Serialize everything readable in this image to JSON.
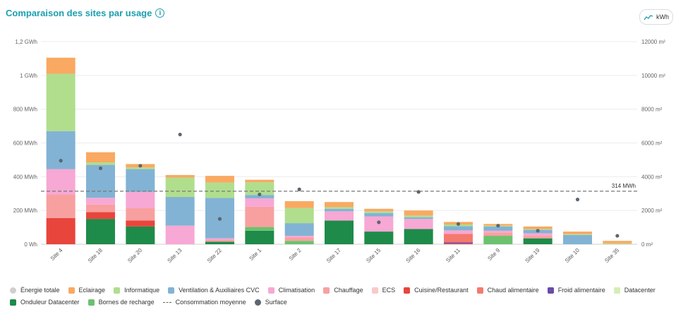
{
  "header": {
    "title": "Comparaison des sites par usage",
    "unit_button_label": "kWh"
  },
  "chart_data": {
    "type": "bar",
    "stacked": true,
    "title": "Comparaison des sites par usage",
    "left_axis": {
      "unit": "MWh",
      "lim": [
        0,
        1200
      ],
      "ticks": [
        0,
        200,
        400,
        600,
        800,
        1000,
        1200
      ],
      "tick_labels": [
        "0 Wh",
        "200 MWh",
        "400 MWh",
        "600 MWh",
        "800 MWh",
        "1 GWh",
        "1,2 GWh"
      ]
    },
    "right_axis": {
      "unit": "m²",
      "lim": [
        0,
        12000
      ],
      "ticks": [
        0,
        2000,
        4000,
        6000,
        8000,
        10000,
        12000
      ],
      "tick_labels": [
        "0 m²",
        "2000 m²",
        "4000 m²",
        "6000 m²",
        "8000 m²",
        "10000 m²",
        "12000 m²"
      ]
    },
    "grid": true,
    "legend_position": "bottom",
    "categories": [
      "Site 4",
      "Site 18",
      "Site 20",
      "Site 13",
      "Site 22",
      "Site 1",
      "Site 2",
      "Site 17",
      "Site 15",
      "Site 16",
      "Site 11",
      "Site 9",
      "Site 19",
      "Site 10",
      "Site 35"
    ],
    "series": [
      {
        "name": "Onduleur Datacenter",
        "color": "#1e8b4a",
        "values": [
          0,
          150,
          105,
          0,
          15,
          80,
          0,
          140,
          75,
          90,
          0,
          0,
          35,
          0,
          0
        ]
      },
      {
        "name": "Bornes de recharge",
        "color": "#6cc16e",
        "values": [
          0,
          0,
          0,
          0,
          0,
          22,
          20,
          0,
          0,
          0,
          0,
          50,
          0,
          0,
          0
        ]
      },
      {
        "name": "Cuisine/Restaurant",
        "color": "#e8453c",
        "values": [
          155,
          40,
          35,
          0,
          0,
          0,
          0,
          0,
          0,
          0,
          5,
          0,
          0,
          0,
          0
        ]
      },
      {
        "name": "Froid alimentaire",
        "color": "#6a4ba8",
        "values": [
          0,
          0,
          0,
          0,
          0,
          0,
          0,
          0,
          0,
          0,
          7,
          0,
          0,
          0,
          0
        ]
      },
      {
        "name": "Chaud alimentaire",
        "color": "#f47a6e",
        "values": [
          0,
          0,
          0,
          0,
          0,
          0,
          0,
          0,
          0,
          0,
          50,
          0,
          0,
          0,
          0
        ]
      },
      {
        "name": "Chauffage",
        "color": "#f8a0a0",
        "values": [
          140,
          45,
          75,
          0,
          10,
          120,
          20,
          0,
          0,
          0,
          0,
          20,
          15,
          0,
          0
        ]
      },
      {
        "name": "ECS",
        "color": "#f9c9c9",
        "values": [
          0,
          0,
          0,
          0,
          0,
          0,
          0,
          0,
          0,
          0,
          0,
          0,
          0,
          0,
          0
        ]
      },
      {
        "name": "Climatisation",
        "color": "#f7a8d4",
        "values": [
          150,
          40,
          95,
          110,
          10,
          50,
          10,
          55,
          90,
          60,
          20,
          10,
          15,
          0,
          0
        ]
      },
      {
        "name": "Ventilation & Auxiliaires CVC",
        "color": "#82b3d4",
        "values": [
          225,
          195,
          135,
          170,
          240,
          20,
          75,
          15,
          20,
          10,
          25,
          25,
          20,
          55,
          0
        ]
      },
      {
        "name": "Informatique",
        "color": "#b0de8d",
        "values": [
          340,
          15,
          10,
          115,
          90,
          75,
          90,
          10,
          10,
          10,
          10,
          5,
          5,
          5,
          5
        ]
      },
      {
        "name": "Datacenter",
        "color": "#d4eeb6",
        "values": [
          0,
          0,
          0,
          0,
          0,
          0,
          0,
          0,
          0,
          0,
          0,
          0,
          0,
          0,
          0
        ]
      },
      {
        "name": "Éclairage",
        "color": "#f9a962",
        "values": [
          95,
          60,
          20,
          15,
          40,
          15,
          40,
          30,
          15,
          30,
          15,
          10,
          15,
          15,
          15
        ]
      }
    ],
    "surface_m2": [
      4950,
      4500,
      4650,
      6500,
      1500,
      2950,
      3250,
      null,
      1300,
      3100,
      1200,
      1100,
      800,
      2650,
      500
    ],
    "average_consumption_mwh": 314,
    "average_label": "314 MWh"
  },
  "legend": {
    "row1": [
      {
        "label": "Énergie totale",
        "color": "#cfcfcf",
        "shape": "dot"
      },
      {
        "label": "Eclairage",
        "color": "#f9a962",
        "shape": "square"
      },
      {
        "label": "Informatique",
        "color": "#b0de8d",
        "shape": "square"
      },
      {
        "label": "Ventilation & Auxiliaires CVC",
        "color": "#82b3d4",
        "shape": "square"
      },
      {
        "label": "Climatisation",
        "color": "#f7a8d4",
        "shape": "square"
      },
      {
        "label": "Chauffage",
        "color": "#f8a0a0",
        "shape": "square"
      },
      {
        "label": "ECS",
        "color": "#f9c9c9",
        "shape": "square"
      },
      {
        "label": "Cuisine/Restaurant",
        "color": "#e8453c",
        "shape": "square"
      },
      {
        "label": "Chaud alimentaire",
        "color": "#f47a6e",
        "shape": "square"
      },
      {
        "label": "Froid alimentaire",
        "color": "#6a4ba8",
        "shape": "square"
      },
      {
        "label": "Datacenter",
        "color": "#d4eeb6",
        "shape": "square"
      }
    ],
    "row2": [
      {
        "label": "Onduleur Datacenter",
        "color": "#1e8b4a",
        "shape": "square"
      },
      {
        "label": "Bornes de recharge",
        "color": "#6cc16e",
        "shape": "square"
      },
      {
        "label": "Consommation moyenne",
        "color": "#666666",
        "shape": "dash"
      },
      {
        "label": "Surface",
        "color": "#5c6670",
        "shape": "dot"
      }
    ]
  },
  "colors": {
    "accent": "#1a9fb0",
    "surface_dot": "#5c6670",
    "average_line": "#777777"
  }
}
